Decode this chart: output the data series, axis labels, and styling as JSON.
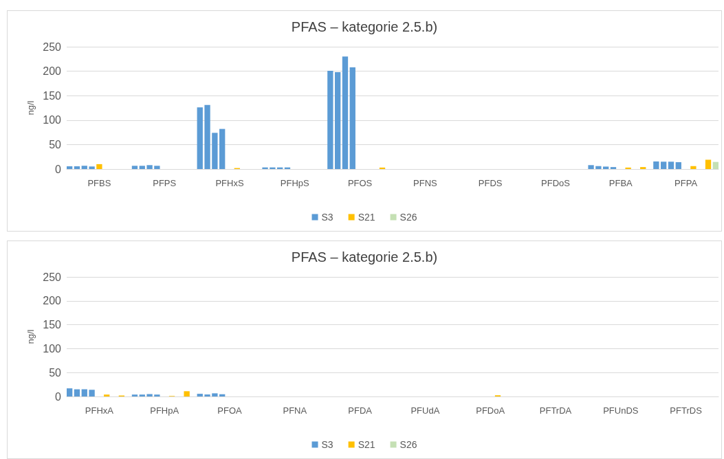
{
  "chart_data": [
    {
      "type": "bar",
      "title": "PFAS – kategorie 2.5.b)",
      "ylabel": "ng/l",
      "categories": [
        "PFBS",
        "PFPS",
        "PFHxS",
        "PFHpS",
        "PFOS",
        "PFNS",
        "PFDS",
        "PFDoS",
        "PFBA",
        "PFPA"
      ],
      "series": [
        {
          "name": "S3",
          "color": "#5b9bd5",
          "values": [
            5.6,
            6.6,
            126,
            3.3,
            201,
            null,
            null,
            null,
            8,
            15.5
          ]
        },
        {
          "color": "#5b9bd5",
          "values": [
            5.6,
            6.6,
            131,
            3.3,
            198,
            null,
            null,
            null,
            6,
            15
          ]
        },
        {
          "color": "#5b9bd5",
          "values": [
            6.6,
            8,
            74,
            3.3,
            230,
            null,
            null,
            null,
            5,
            15
          ]
        },
        {
          "color": "#5b9bd5",
          "values": [
            5.2,
            6.6,
            82,
            3.3,
            208,
            null,
            null,
            null,
            4,
            14
          ]
        },
        {
          "name": "S21",
          "color": "#ffc000",
          "values": [
            10,
            null,
            null,
            null,
            null,
            null,
            null,
            null,
            null,
            null
          ]
        },
        {
          "color": "#ffc000",
          "values": [
            null,
            null,
            2,
            null,
            null,
            null,
            null,
            null,
            3,
            6
          ]
        },
        {
          "color": "#ffc000",
          "values": [
            null,
            null,
            null,
            null,
            null,
            null,
            null,
            null,
            null,
            null
          ]
        },
        {
          "color": "#ffc000",
          "values": [
            null,
            null,
            null,
            null,
            3,
            null,
            null,
            null,
            4,
            19
          ]
        },
        {
          "name": "S26",
          "color": "#c5e0b4",
          "values": [
            null,
            null,
            null,
            null,
            null,
            null,
            null,
            null,
            null,
            14.5
          ]
        }
      ],
      "ylim": [
        0,
        250
      ],
      "yticks": [
        0,
        50,
        100,
        150,
        200,
        250
      ],
      "grid": "y",
      "legend": "bottom"
    },
    {
      "type": "bar",
      "title": "PFAS – kategorie 2.5.b)",
      "ylabel": "ng/l",
      "categories": [
        "PFHxA",
        "PFHpA",
        "PFOA",
        "PFNA",
        "PFDA",
        "PFUdA",
        "PFDoA",
        "PFTrDA",
        "PFUnDS",
        "PFTrDS"
      ],
      "series": [
        {
          "name": "S3",
          "color": "#5b9bd5",
          "values": [
            17,
            4,
            5.6,
            null,
            null,
            null,
            null,
            null,
            null,
            null
          ]
        },
        {
          "color": "#5b9bd5",
          "values": [
            15,
            4,
            4.2,
            null,
            null,
            null,
            null,
            null,
            null,
            null
          ]
        },
        {
          "color": "#5b9bd5",
          "values": [
            15,
            5,
            6.6,
            null,
            null,
            null,
            null,
            null,
            null,
            null
          ]
        },
        {
          "color": "#5b9bd5",
          "values": [
            14,
            4,
            4.7,
            null,
            null,
            null,
            null,
            null,
            null,
            null
          ]
        },
        {
          "name": "S21",
          "color": "#ffc000",
          "values": [
            null,
            null,
            null,
            null,
            null,
            null,
            null,
            null,
            null,
            null
          ]
        },
        {
          "color": "#ffc000",
          "values": [
            4,
            1,
            null,
            null,
            null,
            null,
            2.5,
            null,
            null,
            null
          ]
        },
        {
          "color": "#ffc000",
          "values": [
            null,
            null,
            null,
            null,
            null,
            null,
            null,
            null,
            null,
            null
          ]
        },
        {
          "color": "#ffc000",
          "values": [
            2,
            11,
            null,
            null,
            null,
            null,
            null,
            null,
            null,
            null
          ]
        },
        {
          "name": "S26",
          "color": "#c5e0b4",
          "values": [
            null,
            null,
            null,
            null,
            null,
            null,
            null,
            null,
            null,
            null
          ]
        }
      ],
      "ylim": [
        0,
        250
      ],
      "yticks": [
        0,
        50,
        100,
        150,
        200,
        250
      ],
      "grid": "y",
      "legend": "bottom"
    }
  ]
}
